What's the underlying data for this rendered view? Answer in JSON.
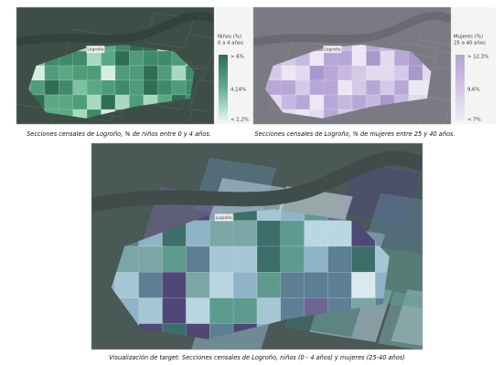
{
  "maps": [
    {
      "town_label": "Logroño",
      "legend": {
        "title": "Niños (%)",
        "subtitle": "0 a 4 años",
        "labels": [
          "> 6%",
          "4,14%",
          "< 2,2%"
        ]
      },
      "caption": "Secciones censales de Logroño, % de niños entre 0 y 4 años."
    },
    {
      "town_label": "Logroño",
      "legend": {
        "title": "Mujeres (%)",
        "subtitle": "25 a 40 años",
        "labels": [
          "> 12,3%",
          "9,6%",
          "< 7%"
        ]
      },
      "caption": "Secciones censales de Logroño, % de mujeres entre 25 y 40 años."
    },
    {
      "town_label": "Logroño",
      "caption": "Visualización de target: Secciones censales de Logroño, niños (0 - 4 años) y mujeres (25-40 años)"
    }
  ]
}
